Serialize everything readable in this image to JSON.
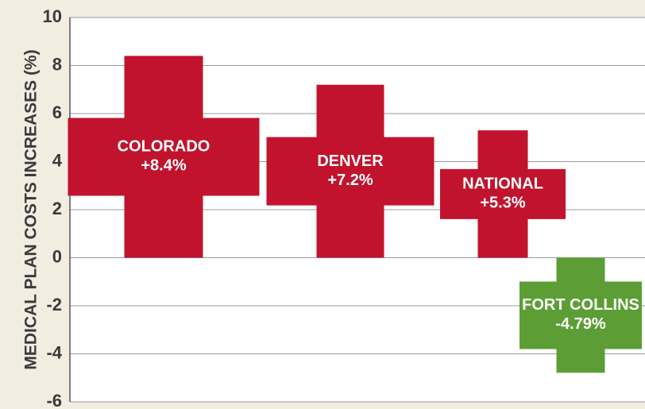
{
  "chart_data": {
    "type": "bar",
    "y_label": "MEDICAL PLAN COSTS INCREASES (%)",
    "categories": [
      "COLORADO",
      "DENVER",
      "NATIONAL",
      "FORT COLLINS"
    ],
    "values": [
      8.4,
      7.2,
      5.3,
      -4.79
    ],
    "value_labels": [
      "+8.4%",
      "+7.2%",
      "+5.3%",
      "-4.79%"
    ],
    "colors": [
      "#c1132d",
      "#c1132d",
      "#c1132d",
      "#5c9e35"
    ],
    "ylim": [
      -6,
      10
    ],
    "yticks": [
      -6,
      -4,
      -2,
      0,
      2,
      4,
      6,
      8,
      10
    ],
    "grid": true
  }
}
